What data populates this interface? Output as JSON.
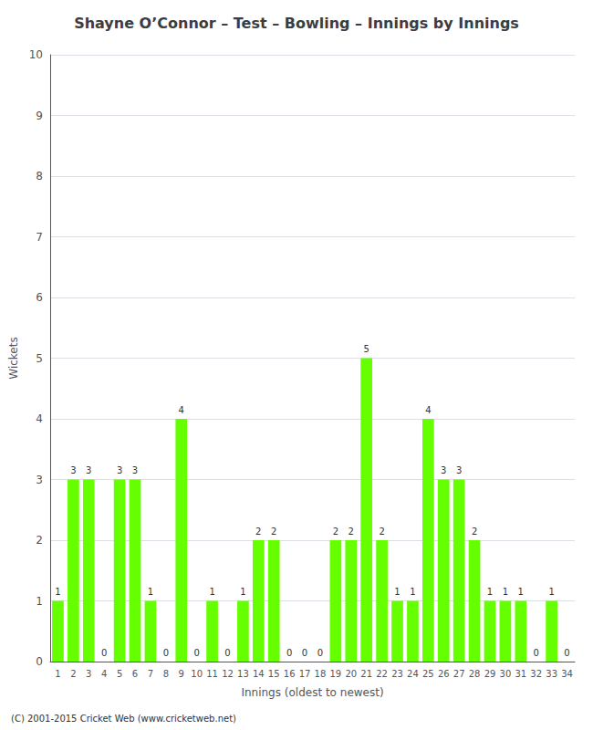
{
  "chart_data": {
    "type": "bar",
    "title": "Shayne Oʼ​Connor – Test – Bowling – Innings by Innings",
    "xlabel": "Innings (oldest to newest)",
    "ylabel": "Wickets",
    "categories": [
      "1",
      "2",
      "3",
      "4",
      "5",
      "6",
      "7",
      "8",
      "9",
      "10",
      "11",
      "12",
      "13",
      "14",
      "15",
      "16",
      "17",
      "18",
      "19",
      "20",
      "21",
      "22",
      "23",
      "24",
      "25",
      "26",
      "27",
      "28",
      "29",
      "30",
      "31",
      "32",
      "33",
      "34"
    ],
    "values": [
      1,
      3,
      3,
      0,
      3,
      3,
      1,
      0,
      4,
      0,
      1,
      0,
      1,
      2,
      2,
      0,
      0,
      0,
      2,
      2,
      5,
      2,
      1,
      1,
      4,
      3,
      3,
      2,
      1,
      1,
      1,
      0,
      1,
      0
    ],
    "color": "#66ff00",
    "ylim": [
      0,
      10
    ],
    "yticks": [
      0,
      1,
      2,
      3,
      4,
      5,
      6,
      7,
      8,
      9,
      10
    ],
    "grid": true,
    "data_labels": true,
    "annotations": [
      "(C) 2001-2015 Cricket Web (www.cricketweb.net)"
    ]
  }
}
